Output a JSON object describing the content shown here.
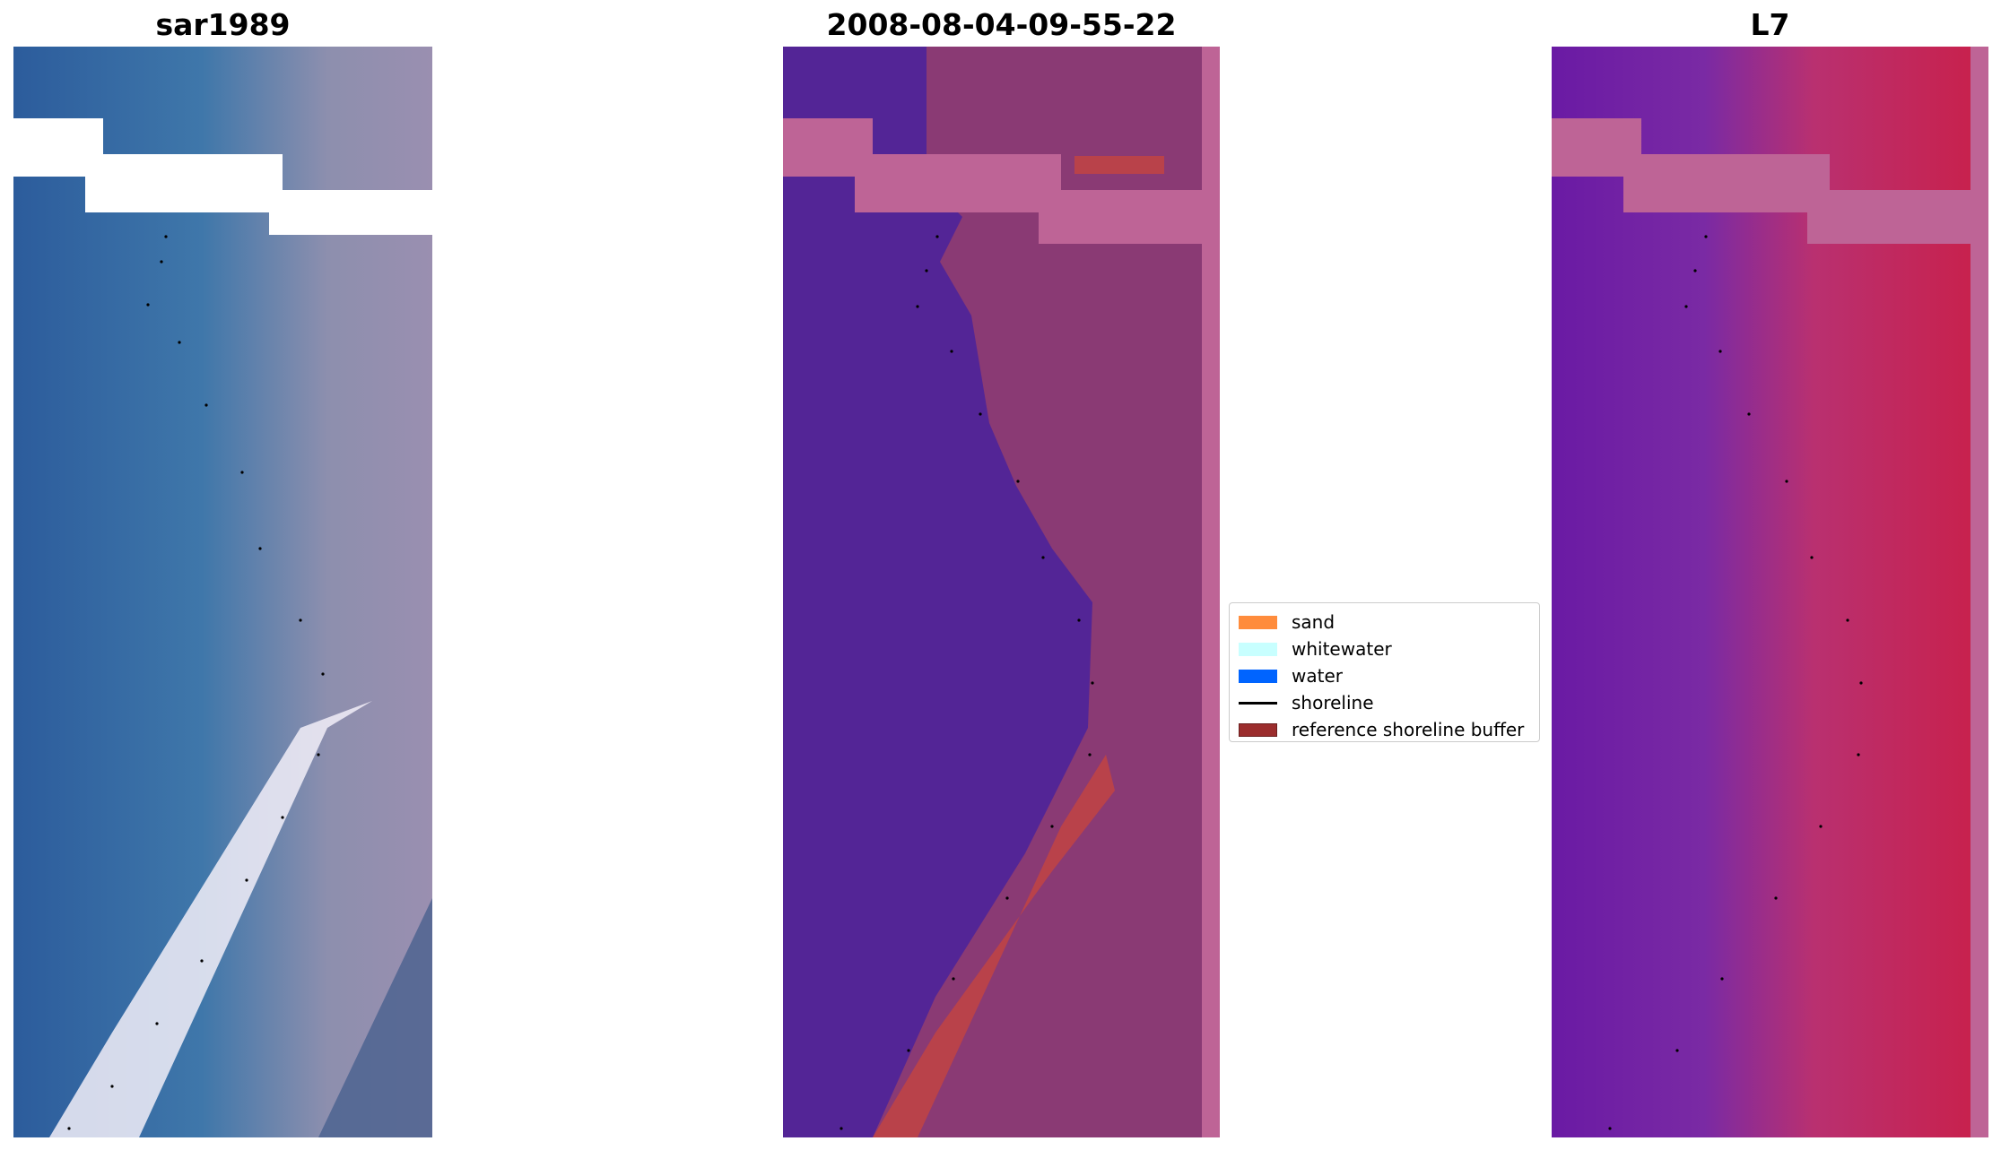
{
  "panels": [
    {
      "title": "sar1989",
      "content": "rgb-satellite-image"
    },
    {
      "title": "2008-08-04-09-55-22",
      "content": "classified-image"
    },
    {
      "title": "L7",
      "content": "mndwi-index-image"
    }
  ],
  "legend": {
    "items": [
      {
        "label": "sand",
        "color": "#ff8c3c",
        "kind": "patch"
      },
      {
        "label": "whitewater",
        "color": "#c8ffff",
        "kind": "patch"
      },
      {
        "label": "water",
        "color": "#0064ff",
        "kind": "patch"
      },
      {
        "label": "shoreline",
        "color": "#000000",
        "kind": "line"
      },
      {
        "label": "reference shoreline buffer",
        "color": "#9b2d2d",
        "kind": "patch"
      }
    ]
  },
  "colors": {
    "classified_water": "#532596",
    "classified_land": "#8a3a74",
    "reference_buffer": "#b9424a",
    "overlay_pink": "#be6496",
    "index_water": "#6a1aa4",
    "index_land": "#c9204a"
  }
}
